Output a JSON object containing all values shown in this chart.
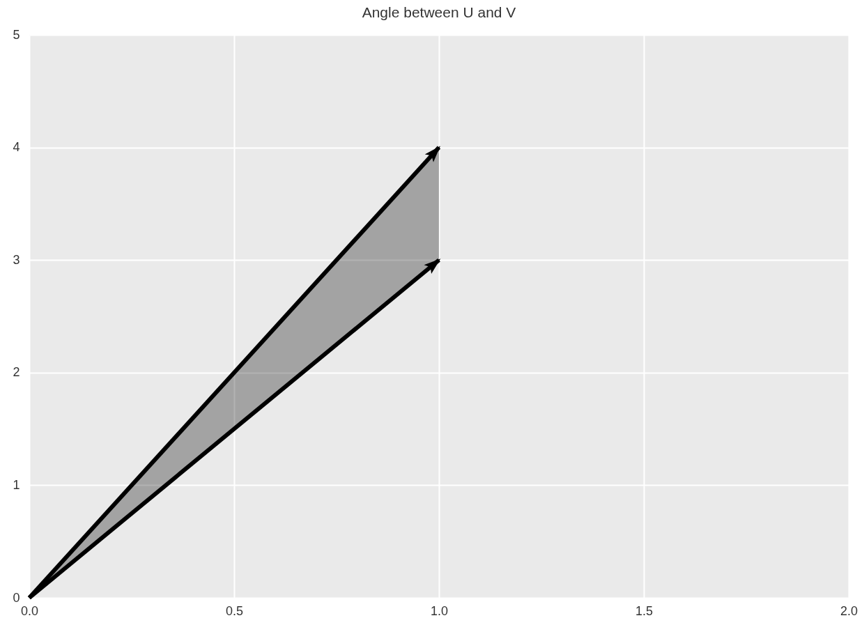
{
  "chart_data": {
    "type": "line",
    "title": "Angle between U and V",
    "series": [
      {
        "color": "#000000",
        "values": [
          0,
          4
        ],
        "lower": [
          0,
          3
        ],
        "upper": [
          0,
          4
        ]
      },
      {
        "color": "#000000",
        "values": [
          0,
          3
        ]
      }
    ],
    "x": [
      0,
      1
    ],
    "xlim": [
      0,
      2
    ],
    "xticks": [
      {
        "value": 0,
        "label": "0.0"
      },
      {
        "value": 0.5,
        "label": "0.5"
      },
      {
        "value": 1,
        "label": "1.0"
      },
      {
        "value": 1.5,
        "label": "1.5"
      },
      {
        "value": 2,
        "label": "2.0"
      }
    ],
    "ylim": [
      0,
      5
    ],
    "yticks": [
      0,
      1,
      2,
      3,
      4,
      5
    ],
    "grid": true,
    "line_style": "solid"
  }
}
